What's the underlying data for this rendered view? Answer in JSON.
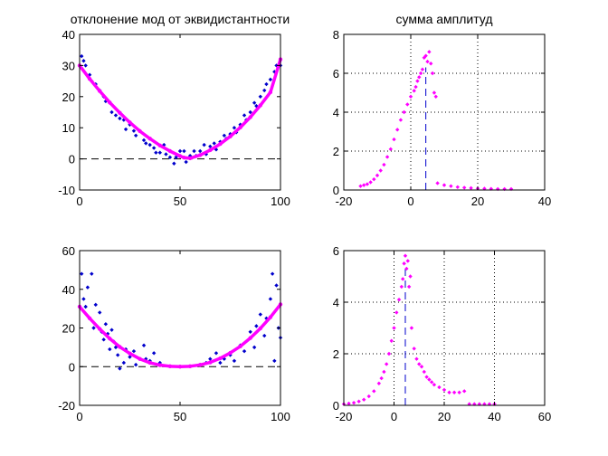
{
  "figure": {
    "background": "#ffffff",
    "colors": {
      "points_blue": "#0000cc",
      "fit_magenta": "#ff00ff",
      "peak_line_blue": "#0000cc",
      "zero_line": "#000000"
    }
  },
  "chart_data": [
    {
      "id": "top-left",
      "type": "scatter",
      "title": "отклонение мод от эквидистантности",
      "xlim": [
        0,
        100
      ],
      "ylim": [
        -10,
        40
      ],
      "xticks": [
        0,
        50,
        100
      ],
      "yticks": [
        -10,
        0,
        10,
        20,
        30,
        40
      ],
      "grid": false,
      "zero_line": true,
      "series": [
        {
          "kind": "points",
          "color": "#0000cc",
          "x": [
            1,
            2,
            3,
            5,
            6,
            8,
            10,
            12,
            13,
            15,
            16,
            18,
            20,
            22,
            23,
            25,
            27,
            28,
            30,
            32,
            33,
            35,
            37,
            38,
            40,
            42,
            43,
            45,
            47,
            48,
            50,
            52,
            53,
            55,
            57,
            58,
            60,
            62,
            63,
            65,
            67,
            68,
            70,
            72,
            73,
            75,
            77,
            78,
            80,
            82,
            83,
            85,
            87,
            88,
            90,
            92,
            93,
            95,
            97,
            98,
            100
          ],
          "y": [
            33,
            31.5,
            30,
            27,
            25,
            24,
            22,
            20,
            18.5,
            18,
            15,
            14,
            13,
            12.5,
            9.5,
            11,
            9,
            7.5,
            9,
            6,
            5,
            4.5,
            3.5,
            2,
            2,
            4.5,
            1.5,
            0.5,
            -1.5,
            0.5,
            2.5,
            2.5,
            -1,
            1,
            2.5,
            1,
            2.5,
            4.5,
            1.5,
            4,
            5,
            3,
            5.5,
            7.5,
            6.5,
            8,
            10,
            8.5,
            11,
            14,
            12.5,
            15,
            18,
            17,
            20,
            22,
            24,
            25.5,
            28,
            30,
            30
          ]
        },
        {
          "kind": "fit-curve",
          "color": "#ff00ff",
          "x": [
            0,
            5,
            10,
            15,
            20,
            25,
            30,
            35,
            40,
            45,
            50,
            52,
            55,
            60,
            65,
            70,
            75,
            80,
            85,
            90,
            95,
            100
          ],
          "y": [
            30,
            25.7,
            21.8,
            18.1,
            14.8,
            11.7,
            8.9,
            6.5,
            4.3,
            2.5,
            0.9,
            0.4,
            0.2,
            1.2,
            2.8,
            4.8,
            7.2,
            10.1,
            13.4,
            17.2,
            21.4,
            32
          ]
        }
      ]
    },
    {
      "id": "top-right",
      "type": "scatter",
      "title": "сумма амплитуд",
      "xlim": [
        -20,
        40
      ],
      "ylim": [
        0,
        8
      ],
      "xticks": [
        -20,
        0,
        20,
        40
      ],
      "yticks": [
        0,
        2,
        4,
        6,
        8
      ],
      "grid": true,
      "peak_line_x": 4.5,
      "peak_line_y": 6.3,
      "series": [
        {
          "kind": "points",
          "color": "#ff00ff",
          "x": [
            -15,
            -14,
            -13,
            -12,
            -11,
            -10,
            -9,
            -8,
            -7,
            -6,
            -5,
            -4,
            -3,
            -2,
            -1,
            0,
            1,
            1.5,
            2,
            2.5,
            3,
            3.5,
            4,
            4.5,
            5,
            5.5,
            6,
            6.5,
            7,
            7.5,
            8,
            10,
            12,
            14,
            16,
            18,
            20,
            22,
            24,
            26,
            28,
            30
          ],
          "y": [
            0.2,
            0.25,
            0.3,
            0.4,
            0.55,
            0.75,
            1.0,
            1.3,
            1.7,
            2.1,
            2.6,
            3.1,
            3.6,
            4.0,
            4.4,
            4.8,
            5.1,
            5.3,
            5.6,
            5.8,
            6.0,
            6.2,
            6.8,
            6.9,
            6.6,
            7.1,
            6.5,
            6.0,
            5.0,
            4.8,
            0.35,
            0.25,
            0.2,
            0.15,
            0.12,
            0.1,
            0.08,
            0.07,
            0.06,
            0.05,
            0.05,
            0.05
          ]
        }
      ]
    },
    {
      "id": "bottom-left",
      "type": "scatter",
      "title": "",
      "xlim": [
        0,
        100
      ],
      "ylim": [
        -20,
        60
      ],
      "xticks": [
        0,
        50,
        100
      ],
      "yticks": [
        -20,
        0,
        20,
        40,
        60
      ],
      "grid": false,
      "zero_line": true,
      "series": [
        {
          "kind": "points",
          "color": "#0000cc",
          "x": [
            1,
            2,
            3,
            4,
            6,
            7,
            8,
            10,
            11,
            12,
            13,
            14,
            15,
            16,
            17,
            18,
            19,
            20,
            22,
            23,
            25,
            27,
            28,
            30,
            32,
            33,
            35,
            37,
            40,
            60,
            63,
            65,
            68,
            70,
            72,
            75,
            77,
            80,
            82,
            85,
            87,
            88,
            90,
            92,
            93,
            95,
            96,
            97,
            98,
            99,
            100
          ],
          "y": [
            48,
            35,
            31,
            41,
            48,
            20,
            32,
            28,
            18,
            14,
            22,
            17,
            9,
            19,
            13,
            10,
            6,
            -1,
            2,
            9,
            5,
            8,
            1,
            4,
            11,
            4,
            3,
            7,
            2,
            1,
            2,
            4,
            7,
            2,
            4,
            6,
            3,
            11,
            8,
            18,
            10,
            21,
            27,
            16,
            25,
            35,
            48,
            3,
            42,
            20,
            15
          ]
        },
        {
          "kind": "fit-curve",
          "color": "#ff00ff",
          "x": [
            0,
            5,
            10,
            15,
            20,
            25,
            30,
            35,
            40,
            45,
            50,
            55,
            60,
            65,
            70,
            75,
            80,
            85,
            90,
            95,
            100
          ],
          "y": [
            31,
            25,
            19.5,
            14.5,
            10.2,
            6.8,
            4.0,
            2.0,
            0.8,
            0.2,
            0,
            0.2,
            0.9,
            2.2,
            4.3,
            7.1,
            10.5,
            14.8,
            19.8,
            25.6,
            32.2
          ]
        }
      ]
    },
    {
      "id": "bottom-right",
      "type": "scatter",
      "title": "",
      "xlim": [
        -20,
        60
      ],
      "ylim": [
        0,
        6
      ],
      "xticks": [
        -20,
        0,
        20,
        40,
        60
      ],
      "yticks": [
        0,
        2,
        4,
        6
      ],
      "grid": true,
      "peak_line_x": 4.5,
      "peak_line_y": 5.5,
      "series": [
        {
          "kind": "points",
          "color": "#ff00ff",
          "x": [
            -20,
            -18,
            -16,
            -14,
            -12,
            -10,
            -8,
            -6,
            -5,
            -4,
            -3,
            -2,
            -1,
            0,
            1,
            2,
            3,
            3.5,
            4,
            4.5,
            5,
            5.5,
            6,
            6.5,
            7,
            8,
            9,
            10,
            11,
            12,
            13,
            14,
            15,
            16,
            18,
            20,
            22,
            24,
            26,
            28,
            30,
            32,
            34,
            36,
            38,
            40
          ],
          "y": [
            0.05,
            0.07,
            0.1,
            0.15,
            0.22,
            0.35,
            0.55,
            0.85,
            1.05,
            1.3,
            1.6,
            2.0,
            2.5,
            3.0,
            3.6,
            4.1,
            4.6,
            4.9,
            5.5,
            5.8,
            5.3,
            5.6,
            4.6,
            5.0,
            3.0,
            2.2,
            1.8,
            1.6,
            1.5,
            1.3,
            1.1,
            1.0,
            0.9,
            0.8,
            0.7,
            0.6,
            0.5,
            0.5,
            0.5,
            0.55,
            0.05,
            0.05,
            0.05,
            0.05,
            0.05,
            0.05
          ]
        }
      ]
    }
  ]
}
